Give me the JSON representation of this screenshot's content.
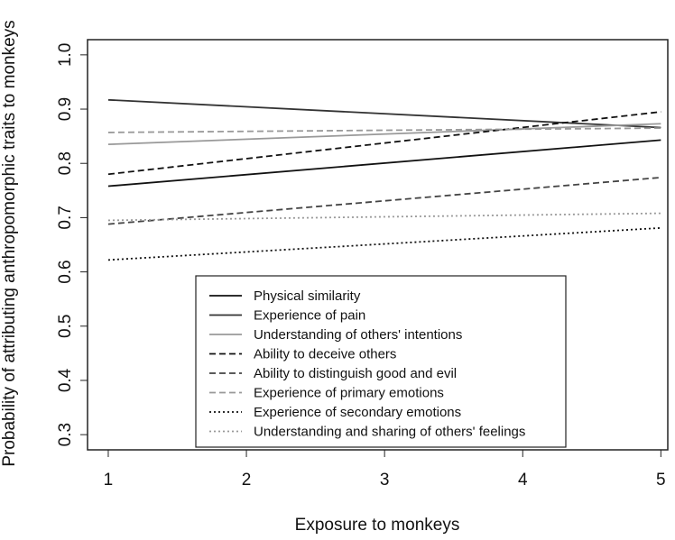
{
  "chart_data": {
    "type": "line",
    "xlabel": "Exposure to monkeys",
    "ylabel": "Probability of attributing anthropomorphic traits to monkeys",
    "xlim": [
      0.85,
      5.05
    ],
    "ylim": [
      0.272,
      1.028
    ],
    "x_ticks": [
      "1",
      "2",
      "3",
      "4",
      "5"
    ],
    "y_ticks": [
      "0.3",
      "0.4",
      "0.5",
      "0.6",
      "0.7",
      "0.8",
      "0.9",
      "1.0"
    ],
    "legend_position": "bottom-center",
    "grid": false,
    "x": [
      1,
      5
    ],
    "series": [
      {
        "name": "Physical similarity",
        "values": [
          0.758,
          0.843
        ],
        "color": "#111111",
        "dash": "solid"
      },
      {
        "name": "Experience of pain",
        "values": [
          0.917,
          0.866
        ],
        "color": "#333333",
        "dash": "solid"
      },
      {
        "name": "Understanding of others' intentions",
        "values": [
          0.835,
          0.873
        ],
        "color": "#999999",
        "dash": "solid"
      },
      {
        "name": "Ability to deceive others",
        "values": [
          0.78,
          0.895
        ],
        "color": "#111111",
        "dash": "dashed"
      },
      {
        "name": "Ability to distinguish good and evil",
        "values": [
          0.688,
          0.774
        ],
        "color": "#444444",
        "dash": "dashed"
      },
      {
        "name": "Experience of primary emotions",
        "values": [
          0.857,
          0.865
        ],
        "color": "#999999",
        "dash": "dashed"
      },
      {
        "name": "Experience of secondary emotions",
        "values": [
          0.622,
          0.681
        ],
        "color": "#111111",
        "dash": "dotted"
      },
      {
        "name": "Understanding and sharing of others' feelings",
        "values": [
          0.695,
          0.708
        ],
        "color": "#999999",
        "dash": "dotted"
      }
    ]
  }
}
